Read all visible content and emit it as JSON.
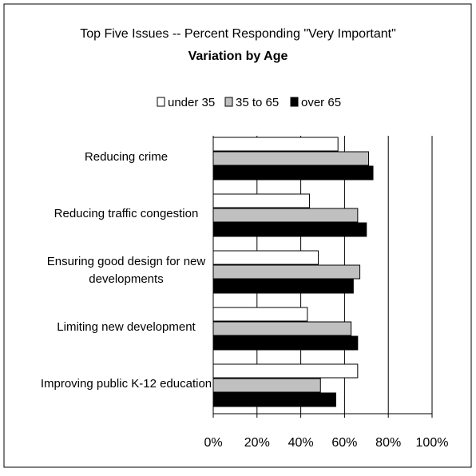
{
  "chart_data": {
    "type": "bar",
    "orientation": "horizontal",
    "title": "Top Five Issues -- Percent Responding \"Very Important\"",
    "subtitle": "Variation by Age",
    "categories": [
      [
        "Reducing crime"
      ],
      [
        "Reducing traffic congestion"
      ],
      [
        "Ensuring good design for new",
        "developments"
      ],
      [
        "Limiting new development"
      ],
      [
        "Improving public K-12 education"
      ]
    ],
    "series": [
      {
        "name": "under 35",
        "color": "#ffffff",
        "values": [
          57,
          44,
          48,
          43,
          66
        ]
      },
      {
        "name": "35 to 65",
        "color": "#c0c0c0",
        "values": [
          71,
          66,
          67,
          63,
          49
        ]
      },
      {
        "name": "over 65",
        "color": "#000000",
        "values": [
          73,
          70,
          64,
          66,
          56
        ]
      }
    ],
    "xlim": [
      0,
      100
    ],
    "xticks": [
      "0%",
      "20%",
      "40%",
      "60%",
      "80%",
      "100%"
    ],
    "grid": "vertical",
    "legend": "top"
  }
}
